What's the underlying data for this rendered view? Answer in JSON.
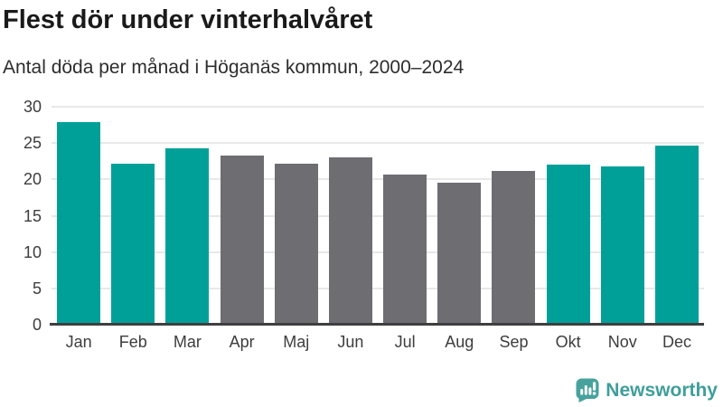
{
  "header": {
    "title": "Flest dör under vinterhalvåret",
    "subtitle": "Antal döda per månad i Höganäs kommun, 2000–2024"
  },
  "chart_data": {
    "type": "bar",
    "title": "Flest dör under vinterhalvåret",
    "subtitle": "Antal döda per månad i Höganäs kommun, 2000–2024",
    "categories": [
      "Jan",
      "Feb",
      "Mar",
      "Apr",
      "Maj",
      "Jun",
      "Jul",
      "Aug",
      "Sep",
      "Okt",
      "Nov",
      "Dec"
    ],
    "values": [
      27.9,
      22.2,
      24.3,
      23.3,
      22.1,
      23.0,
      20.7,
      19.5,
      21.2,
      22.0,
      21.8,
      24.7
    ],
    "bar_colors": [
      "#00a099",
      "#00a099",
      "#00a099",
      "#6d6d72",
      "#6d6d72",
      "#6d6d72",
      "#6d6d72",
      "#6d6d72",
      "#6d6d72",
      "#00a099",
      "#00a099",
      "#00a099"
    ],
    "highlight_meaning": "winter months (teal) vs summer months (gray)",
    "xlabel": "",
    "ylabel": "",
    "ylim": [
      0,
      30
    ],
    "yticks": [
      0,
      5,
      10,
      15,
      20,
      25,
      30
    ],
    "grid": true,
    "legend": "none",
    "colors": {
      "winter_bar": "#00a099",
      "summer_bar": "#6d6d72",
      "gridline": "#e8e8e8",
      "axis_line": "#3f3f3f",
      "tick_text": "#3d3d3d"
    }
  },
  "footer": {
    "brand": "Newsworthy",
    "brand_color": "#3f9e9a",
    "logo_icon": "bar-chart-speech-bubble-icon"
  }
}
